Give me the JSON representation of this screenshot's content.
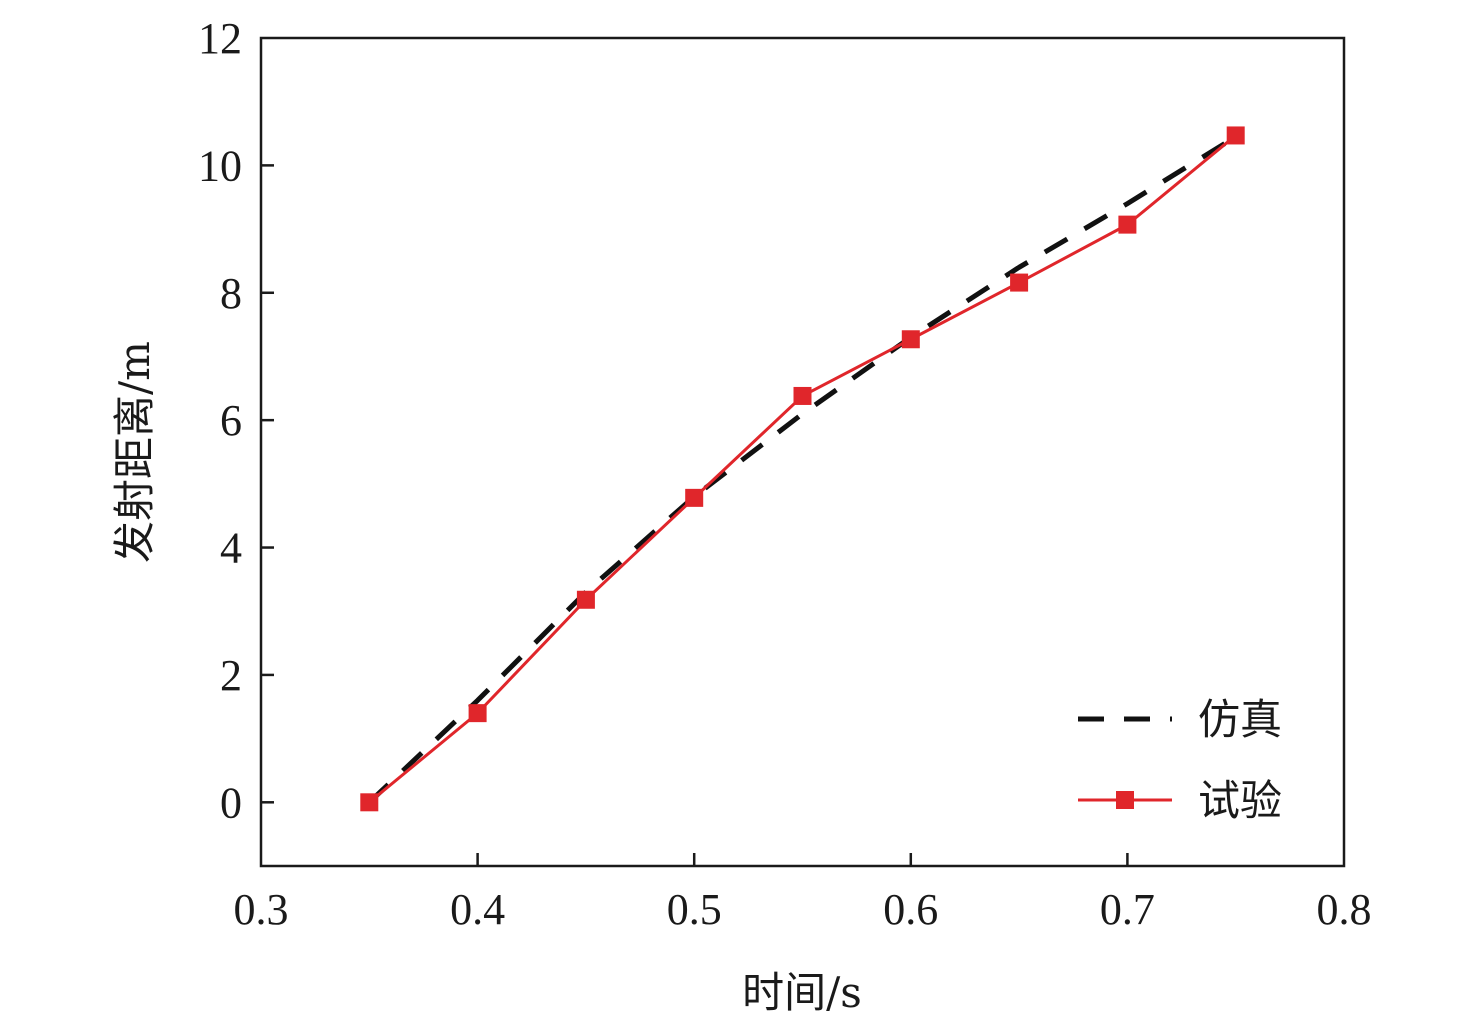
{
  "chart_data": {
    "type": "line",
    "title": "",
    "xlabel": "时间/s",
    "ylabel": "发射距离/m",
    "xlim": [
      0.3,
      0.8
    ],
    "ylim": [
      -1,
      12
    ],
    "xticks": [
      0.3,
      0.4,
      0.5,
      0.6,
      0.7,
      0.8
    ],
    "yticks": [
      0,
      2,
      4,
      6,
      8,
      10,
      12
    ],
    "xtick_labels": [
      "0.3",
      "0.4",
      "0.5",
      "0.6",
      "0.7",
      "0.8"
    ],
    "ytick_labels": [
      "0",
      "2",
      "4",
      "6",
      "8",
      "10",
      "12"
    ],
    "grid": false,
    "legend_position": "bottom-right",
    "series": [
      {
        "name": "仿真",
        "style": "dashed",
        "color": "#111111",
        "x": [
          0.35,
          0.4,
          0.45,
          0.5,
          0.55,
          0.6,
          0.65,
          0.7,
          0.75
        ],
        "y": [
          0.0,
          1.6,
          3.3,
          4.8,
          6.1,
          7.3,
          8.4,
          9.4,
          10.45
        ]
      },
      {
        "name": "试验",
        "style": "solid",
        "marker": "square",
        "color": "#e0262b",
        "x": [
          0.35,
          0.4,
          0.45,
          0.5,
          0.55,
          0.6,
          0.65,
          0.7,
          0.75
        ],
        "y": [
          0.0,
          1.4,
          3.18,
          4.78,
          6.38,
          7.27,
          8.16,
          9.07,
          10.47
        ]
      }
    ]
  }
}
